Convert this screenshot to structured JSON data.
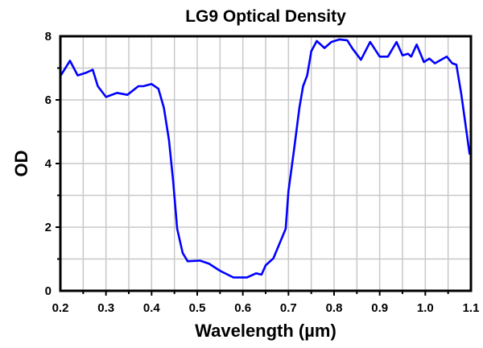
{
  "chart_data": {
    "type": "line",
    "title": "LG9 Optical Density",
    "xlabel": "Wavelength (µm)",
    "ylabel": "OD",
    "xlim": [
      0.2,
      1.1
    ],
    "ylim": [
      0,
      8
    ],
    "xticks": [
      "0.2",
      "0.3",
      "0.4",
      "0.5",
      "0.6",
      "0.7",
      "0.8",
      "0.9",
      "1.0",
      "1.1"
    ],
    "yticks": [
      "0",
      "2",
      "4",
      "6",
      "8"
    ],
    "grid": true,
    "line_color": "#0000ff",
    "series": [
      {
        "x": [
          0.2,
          0.221,
          0.238,
          0.256,
          0.271,
          0.282,
          0.3,
          0.324,
          0.347,
          0.371,
          0.382,
          0.4,
          0.415,
          0.427,
          0.438,
          0.447,
          0.456,
          0.468,
          0.479,
          0.506,
          0.526,
          0.55,
          0.579,
          0.609,
          0.629,
          0.641,
          0.65,
          0.667,
          0.694,
          0.7,
          0.712,
          0.724,
          0.732,
          0.741,
          0.75,
          0.762,
          0.779,
          0.794,
          0.812,
          0.829,
          0.841,
          0.859,
          0.879,
          0.9,
          0.918,
          0.937,
          0.95,
          0.962,
          0.969,
          0.981,
          0.997,
          1.009,
          1.021,
          1.047,
          1.059,
          1.068,
          1.079,
          1.097,
          1.1
        ],
        "y": [
          6.75,
          7.23,
          6.77,
          6.85,
          6.95,
          6.43,
          6.09,
          6.22,
          6.16,
          6.43,
          6.43,
          6.5,
          6.35,
          5.75,
          4.74,
          3.47,
          1.95,
          1.19,
          0.93,
          0.95,
          0.85,
          0.63,
          0.42,
          0.42,
          0.55,
          0.51,
          0.8,
          1.02,
          1.95,
          3.13,
          4.4,
          5.75,
          6.43,
          6.77,
          7.53,
          7.85,
          7.63,
          7.82,
          7.9,
          7.87,
          7.6,
          7.26,
          7.82,
          7.36,
          7.36,
          7.82,
          7.4,
          7.45,
          7.36,
          7.74,
          7.19,
          7.3,
          7.15,
          7.36,
          7.15,
          7.11,
          6.17,
          4.31,
          4.3
        ]
      }
    ]
  }
}
